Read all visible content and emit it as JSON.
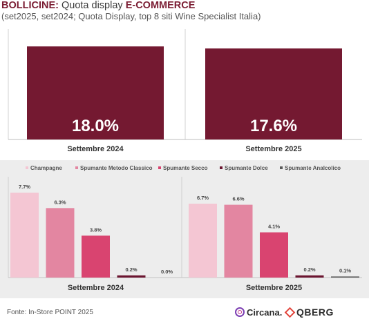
{
  "header": {
    "title_bold": "BOLLICINE:",
    "title_middle": " Quota display ",
    "title_caps": "E-COMMERCE",
    "subtitle": "(set2025, set2024; Quota Display, top 8 siti Wine Specialist Italia)"
  },
  "footer": {
    "source": "Fonte: In-Store POINT 2025",
    "logo1": "Circana.",
    "logo2": "QBERG"
  },
  "colors": {
    "bordeaux": "#741931",
    "bg_panel": "#ededed",
    "champagne": "#f4c6d3",
    "metodo_classico": "#e386a1",
    "secco": "#d94470",
    "dolce": "#6b1530",
    "analcolico": "#5a5a5a"
  },
  "chart_data": [
    {
      "type": "bar",
      "categories": [
        "Settembre 2024",
        "Settembre 2025"
      ],
      "values": [
        18.0,
        17.6
      ],
      "labels": [
        "18.0%",
        "17.6%"
      ],
      "ylim": [
        0,
        19.5
      ]
    },
    {
      "type": "bar",
      "legend_position": "top-left",
      "categories": [
        "Settembre 2024",
        "Settembre 2025"
      ],
      "series": [
        {
          "name": "Champagne",
          "values": [
            7.7,
            6.7
          ],
          "labels": [
            "7.7%",
            "6.7%"
          ]
        },
        {
          "name": "Spumante Metodo Classico",
          "values": [
            6.3,
            6.6
          ],
          "labels": [
            "6.3%",
            "6.6%"
          ]
        },
        {
          "name": "Spumante Secco",
          "values": [
            3.8,
            4.1
          ],
          "labels": [
            "3.8%",
            "4.1%"
          ]
        },
        {
          "name": "Spumante Dolce",
          "values": [
            0.2,
            0.2
          ],
          "labels": [
            "0.2%",
            "0.2%"
          ]
        },
        {
          "name": "Spumante Analcolico",
          "values": [
            0.0,
            0.1
          ],
          "labels": [
            "0.0%",
            "0.1%"
          ]
        }
      ],
      "ylim": [
        0,
        8.2
      ]
    }
  ]
}
